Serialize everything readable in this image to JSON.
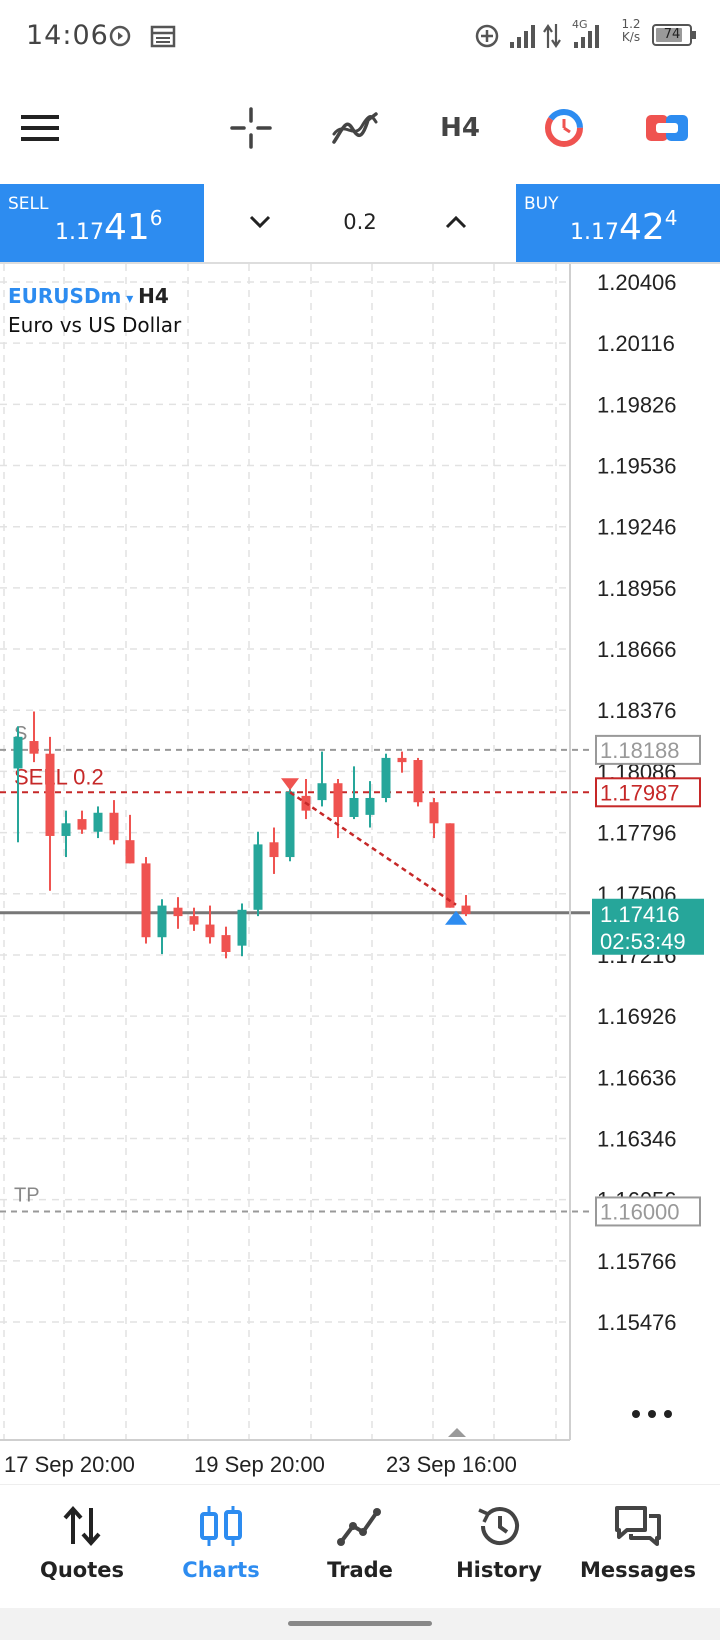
{
  "status_bar": {
    "time": "14:06",
    "network": "4G",
    "speed_top": "1.2",
    "speed_bottom": "K/s",
    "battery": "74"
  },
  "toolbar": {
    "menu_icon": "hamburger-menu-icon",
    "crosshair_icon": "crosshair-icon",
    "indicators_icon": "indicators-icon",
    "timeframe": "H4",
    "objects_icon": "chart-objects-icon",
    "trade_icon": "one-click-trade-icon"
  },
  "trade_panel": {
    "sell_label": "SELL",
    "sell_price_small": "1.17",
    "sell_price_big": "41",
    "sell_price_sup": "6",
    "buy_label": "BUY",
    "buy_price_small": "1.17",
    "buy_price_big": "42",
    "buy_price_sup": "4",
    "volume": "0.2"
  },
  "chart_data": {
    "type": "candlestick",
    "symbol": "EURUSDm",
    "timeframe": "H4",
    "description": "Euro vs US Dollar",
    "y_ticks": [
      "1.20406",
      "1.20116",
      "1.19826",
      "1.19536",
      "1.19246",
      "1.18956",
      "1.18666",
      "1.18376",
      "1.18086",
      "1.17796",
      "1.17506",
      "1.17216",
      "1.16926",
      "1.16636",
      "1.16346",
      "1.16056",
      "1.15766",
      "1.15476"
    ],
    "x_labels": [
      "17 Sep 20:00",
      "19 Sep 20:00",
      "23 Sep 16:00"
    ],
    "ylim": [
      1.1535,
      1.2053
    ],
    "levels": {
      "sl": {
        "label": "S",
        "price": "1.18188"
      },
      "entry": {
        "label": "SELL 0.2",
        "price": "1.17987"
      },
      "current": {
        "price": "1.17416",
        "countdown": "02:53:49"
      },
      "tp": {
        "label": "TP",
        "price": "1.16000"
      }
    },
    "candles": [
      {
        "o": 1.181,
        "h": 1.183,
        "l": 1.1775,
        "c": 1.1825
      },
      {
        "o": 1.1823,
        "h": 1.1837,
        "l": 1.1813,
        "c": 1.1817
      },
      {
        "o": 1.1817,
        "h": 1.1825,
        "l": 1.1752,
        "c": 1.1778
      },
      {
        "o": 1.1778,
        "h": 1.179,
        "l": 1.1768,
        "c": 1.1784
      },
      {
        "o": 1.1786,
        "h": 1.179,
        "l": 1.1779,
        "c": 1.1781
      },
      {
        "o": 1.178,
        "h": 1.1792,
        "l": 1.1777,
        "c": 1.1789
      },
      {
        "o": 1.1789,
        "h": 1.1795,
        "l": 1.1774,
        "c": 1.1776
      },
      {
        "o": 1.1776,
        "h": 1.1788,
        "l": 1.1765,
        "c": 1.1765
      },
      {
        "o": 1.1765,
        "h": 1.1768,
        "l": 1.1727,
        "c": 1.173
      },
      {
        "o": 1.173,
        "h": 1.1748,
        "l": 1.1722,
        "c": 1.1745
      },
      {
        "o": 1.1744,
        "h": 1.1749,
        "l": 1.1734,
        "c": 1.174
      },
      {
        "o": 1.174,
        "h": 1.1744,
        "l": 1.1733,
        "c": 1.1736
      },
      {
        "o": 1.1736,
        "h": 1.1745,
        "l": 1.1727,
        "c": 1.173
      },
      {
        "o": 1.1731,
        "h": 1.1735,
        "l": 1.172,
        "c": 1.1723
      },
      {
        "o": 1.1726,
        "h": 1.1746,
        "l": 1.1721,
        "c": 1.1743
      },
      {
        "o": 1.1743,
        "h": 1.178,
        "l": 1.174,
        "c": 1.1774
      },
      {
        "o": 1.1775,
        "h": 1.1782,
        "l": 1.176,
        "c": 1.1768
      },
      {
        "o": 1.1768,
        "h": 1.1802,
        "l": 1.1766,
        "c": 1.1799
      },
      {
        "o": 1.1797,
        "h": 1.1805,
        "l": 1.1786,
        "c": 1.179
      },
      {
        "o": 1.1795,
        "h": 1.1818,
        "l": 1.1792,
        "c": 1.1803
      },
      {
        "o": 1.1803,
        "h": 1.1805,
        "l": 1.1777,
        "c": 1.1787
      },
      {
        "o": 1.1787,
        "h": 1.1811,
        "l": 1.1786,
        "c": 1.1796
      },
      {
        "o": 1.1788,
        "h": 1.1804,
        "l": 1.1782,
        "c": 1.1796
      },
      {
        "o": 1.1796,
        "h": 1.1817,
        "l": 1.1794,
        "c": 1.1815
      },
      {
        "o": 1.1815,
        "h": 1.1818,
        "l": 1.1808,
        "c": 1.1813
      },
      {
        "o": 1.1814,
        "h": 1.1815,
        "l": 1.1792,
        "c": 1.1794
      },
      {
        "o": 1.1794,
        "h": 1.1796,
        "l": 1.1777,
        "c": 1.1784
      },
      {
        "o": 1.1784,
        "h": 1.1784,
        "l": 1.1744,
        "c": 1.1744
      },
      {
        "o": 1.1745,
        "h": 1.175,
        "l": 1.174,
        "c": 1.1741
      }
    ]
  },
  "nav": {
    "items": [
      {
        "label": "Quotes",
        "icon": "quotes-arrows-icon",
        "active": false
      },
      {
        "label": "Charts",
        "icon": "candles-icon",
        "active": true
      },
      {
        "label": "Trade",
        "icon": "trade-line-icon",
        "active": false
      },
      {
        "label": "History",
        "icon": "history-clock-icon",
        "active": false
      },
      {
        "label": "Messages",
        "icon": "messages-bubble-icon",
        "active": false
      }
    ]
  },
  "colors": {
    "accent": "#2d8cf0",
    "bull": "#26a69a",
    "bear": "#ef5350",
    "sell_level": "#c62828",
    "current_badge": "#26a69a"
  }
}
